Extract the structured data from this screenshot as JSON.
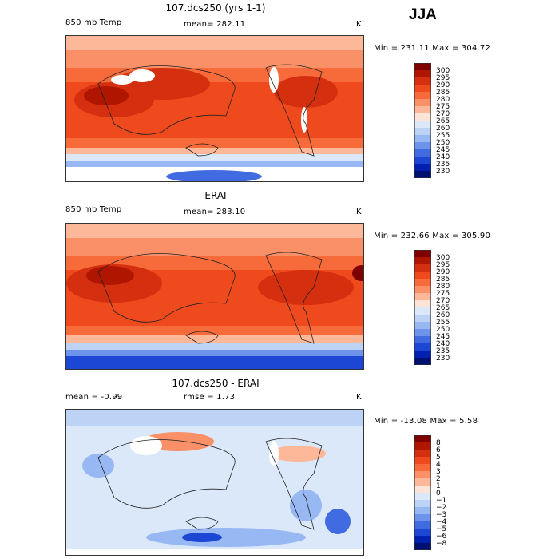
{
  "season": "JJA",
  "chart_data": [
    {
      "type": "heatmap",
      "title": "107.dcs250 (yrs 1-1)",
      "variable": "850 mb Temp",
      "units": "K",
      "mean_text": "mean= 282.11",
      "stats_text": "Min = 231.11  Max = 304.72",
      "min": 231.11,
      "max": 304.72,
      "colorbar_levels": [
        "300",
        "295",
        "290",
        "285",
        "280",
        "275",
        "270",
        "265",
        "260",
        "255",
        "250",
        "245",
        "240",
        "235",
        "230"
      ],
      "colorbar_colors": [
        "#7f0000",
        "#b01500",
        "#d42f0e",
        "#ee4a1e",
        "#f76a3a",
        "#fa9068",
        "#fcb898",
        "#fde4d6",
        "#dbe8f9",
        "#bcd3f6",
        "#97b8f3",
        "#6d94ea",
        "#416be0",
        "#1c47d4",
        "#0020b0",
        "#001070"
      ]
    },
    {
      "type": "heatmap",
      "title": "ERAI",
      "variable": "850 mb Temp",
      "units": "K",
      "mean_text": "mean= 283.10",
      "stats_text": "Min = 232.66  Max = 305.90",
      "min": 232.66,
      "max": 305.9,
      "colorbar_levels": [
        "300",
        "295",
        "290",
        "285",
        "280",
        "275",
        "270",
        "265",
        "260",
        "255",
        "250",
        "245",
        "240",
        "235",
        "230"
      ],
      "colorbar_colors": [
        "#7f0000",
        "#b01500",
        "#d42f0e",
        "#ee4a1e",
        "#f76a3a",
        "#fa9068",
        "#fcb898",
        "#fde4d6",
        "#dbe8f9",
        "#bcd3f6",
        "#97b8f3",
        "#6d94ea",
        "#416be0",
        "#1c47d4",
        "#0020b0",
        "#001070"
      ]
    },
    {
      "type": "heatmap",
      "title": "107.dcs250 - ERAI",
      "mean_text": "mean =   -0.99",
      "rmse_text": "rmse =    1.73",
      "units": "K",
      "stats_text": "Min = -13.08  Max =    5.58",
      "min": -13.08,
      "max": 5.58,
      "colorbar_levels": [
        "8",
        "6",
        "5",
        "4",
        "3",
        "2",
        "1",
        "0",
        "−1",
        "−2",
        "−3",
        "−4",
        "−5",
        "−6",
        "−8"
      ],
      "colorbar_colors": [
        "#7f0000",
        "#b01500",
        "#d42f0e",
        "#ee4a1e",
        "#f76a3a",
        "#fa9068",
        "#fcb898",
        "#fde4d6",
        "#dbe8f9",
        "#bcd3f6",
        "#97b8f3",
        "#6d94ea",
        "#416be0",
        "#1c47d4",
        "#0020b0",
        "#001070"
      ]
    }
  ]
}
